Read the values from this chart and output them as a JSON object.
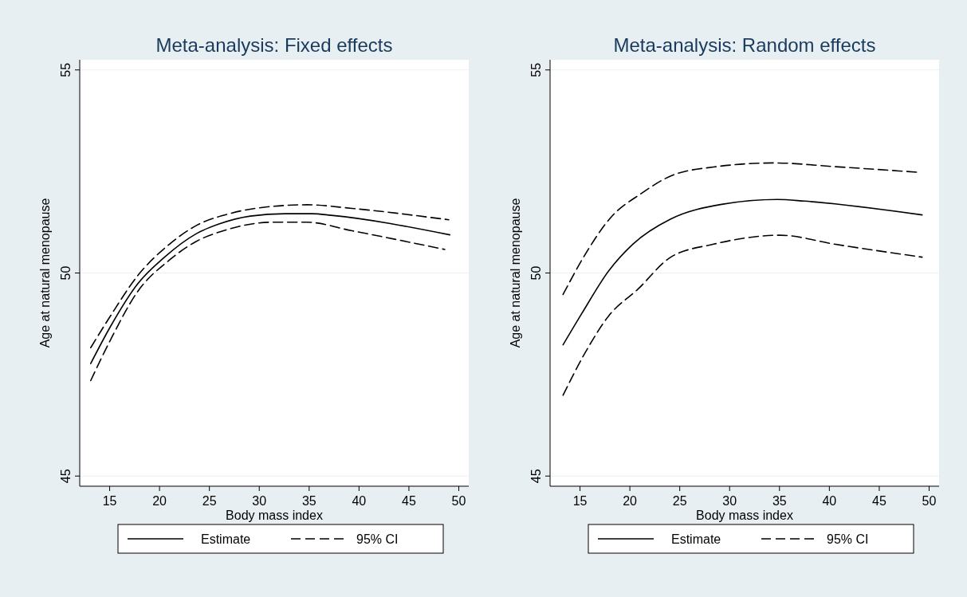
{
  "chart_data": [
    {
      "type": "line",
      "title": "Meta-analysis: Fixed effects",
      "xlabel": "Body mass index",
      "ylabel": "Age at natural menopause",
      "xlim": [
        12,
        51
      ],
      "ylim": [
        44.75,
        55.25
      ],
      "xticks": [
        15,
        20,
        25,
        30,
        35,
        40,
        45,
        50
      ],
      "yticks": [
        45,
        50,
        55
      ],
      "grid": "y",
      "legend": "bottom",
      "marker": "none",
      "series": [
        {
          "name": "Estimate",
          "color": "#000000",
          "line_style": "solid",
          "x": [
            13.1,
            15.1,
            17.8,
            20.5,
            23.7,
            25.9,
            29.1,
            32.6,
            35.3,
            37.2,
            49.1
          ],
          "values": [
            47.77,
            48.69,
            49.73,
            50.39,
            50.97,
            51.2,
            51.4,
            51.46,
            51.46,
            51.42,
            50.94
          ]
        },
        {
          "name": "95% CI",
          "color": "#000000",
          "line_style": "dashed",
          "x": [
            13.1,
            15.1,
            17.8,
            21.0,
            23.7,
            27.0,
            31.3,
            34.8,
            39.3,
            49.0
          ],
          "values": [
            48.16,
            48.95,
            49.93,
            50.71,
            51.17,
            51.46,
            51.64,
            51.68,
            51.59,
            51.31
          ]
        },
        {
          "color": "#000000",
          "line_style": "dashed",
          "x": [
            13.1,
            15.1,
            17.8,
            21.0,
            23.7,
            26.4,
            31.3,
            34.8,
            39.3,
            48.6
          ],
          "values": [
            47.35,
            48.36,
            49.54,
            50.32,
            50.78,
            51.04,
            51.25,
            51.25,
            51.04,
            50.58
          ]
        }
      ]
    },
    {
      "type": "line",
      "title": "Meta-analysis: Random effects",
      "xlabel": "Body mass index",
      "ylabel": "Age at natural menopause",
      "xlim": [
        12,
        51
      ],
      "ylim": [
        44.75,
        55.25
      ],
      "xticks": [
        15,
        20,
        25,
        30,
        35,
        40,
        45,
        50
      ],
      "yticks": [
        45,
        50,
        55
      ],
      "grid": "y",
      "legend": "bottom",
      "marker": "none",
      "series": [
        {
          "name": "Estimate",
          "color": "#000000",
          "line_style": "solid",
          "x": [
            13.3,
            15.2,
            17.9,
            20.3,
            24.1,
            29.2,
            34.8,
            37.5,
            49.3
          ],
          "values": [
            48.23,
            49.01,
            50.06,
            50.71,
            51.33,
            51.69,
            51.81,
            51.77,
            51.43
          ]
        },
        {
          "name": "95% CI",
          "color": "#000000",
          "line_style": "dashed",
          "x": [
            13.3,
            15.5,
            18.1,
            21.1,
            24.3,
            28.4,
            34.5,
            40.5,
            48.9
          ],
          "values": [
            49.47,
            50.45,
            51.37,
            51.95,
            52.41,
            52.61,
            52.71,
            52.62,
            52.48
          ]
        },
        {
          "color": "#000000",
          "line_style": "dashed",
          "x": [
            13.3,
            15.5,
            17.9,
            20.8,
            24.1,
            28.4,
            35.1,
            40.5,
            49.3
          ],
          "values": [
            46.99,
            48.03,
            48.95,
            49.6,
            50.39,
            50.71,
            50.93,
            50.71,
            50.39
          ]
        }
      ]
    }
  ]
}
